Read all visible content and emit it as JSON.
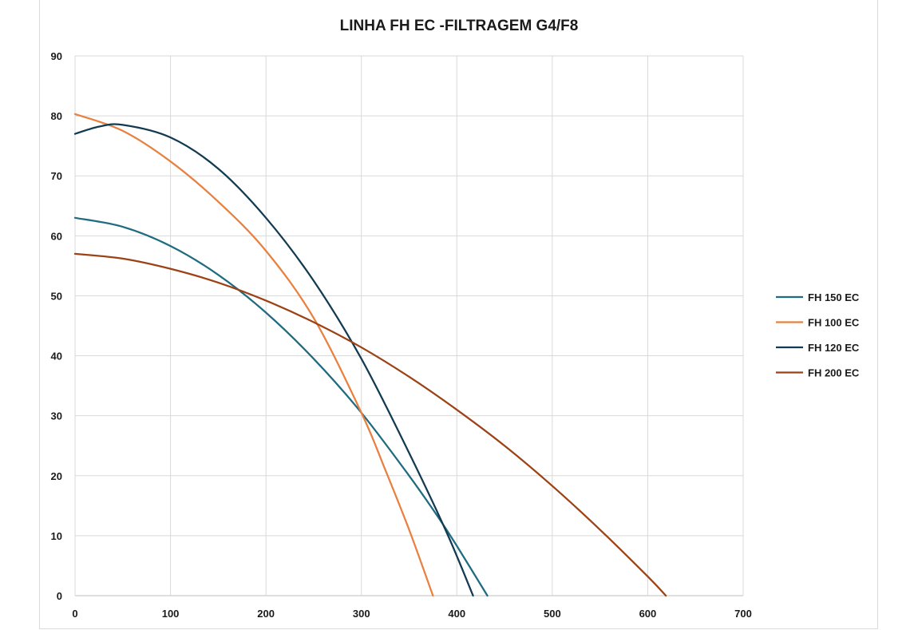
{
  "chart_data": {
    "type": "line",
    "title": "LINHA FH EC  -FILTRAGEM G4/F8",
    "xlabel": "",
    "ylabel": "",
    "xlim": [
      0,
      700
    ],
    "ylim": [
      0,
      90
    ],
    "x_ticks": [
      0,
      100,
      200,
      300,
      400,
      500,
      600,
      700
    ],
    "y_ticks": [
      0,
      10,
      20,
      30,
      40,
      50,
      60,
      70,
      80,
      90
    ],
    "grid": true,
    "legend_position": "right",
    "series": [
      {
        "name": "FH 150 EC",
        "color": "#1f6b80",
        "points": [
          [
            0,
            63
          ],
          [
            50,
            61.5
          ],
          [
            100,
            58.3
          ],
          [
            150,
            53.5
          ],
          [
            200,
            47.2
          ],
          [
            250,
            39.5
          ],
          [
            300,
            30.5
          ],
          [
            350,
            20
          ],
          [
            380,
            13.2
          ],
          [
            400,
            8.3
          ],
          [
            432,
            0
          ]
        ]
      },
      {
        "name": "FH 100 EC",
        "color": "#e8803f",
        "points": [
          [
            0,
            80.3
          ],
          [
            50,
            77.5
          ],
          [
            100,
            72.4
          ],
          [
            150,
            65.7
          ],
          [
            200,
            57.5
          ],
          [
            250,
            46.3
          ],
          [
            300,
            30.5
          ],
          [
            325,
            21
          ],
          [
            350,
            11
          ],
          [
            375,
            0
          ]
        ]
      },
      {
        "name": "FH 120 EC",
        "color": "#123b52",
        "points": [
          [
            0,
            77
          ],
          [
            25,
            78.2
          ],
          [
            50,
            78.5
          ],
          [
            100,
            76.4
          ],
          [
            150,
            71.2
          ],
          [
            200,
            63
          ],
          [
            250,
            52.5
          ],
          [
            300,
            39.5
          ],
          [
            350,
            23.8
          ],
          [
            390,
            10.3
          ],
          [
            417,
            0
          ]
        ]
      },
      {
        "name": "FH 200 EC",
        "color": "#9c4214",
        "points": [
          [
            0,
            57
          ],
          [
            50,
            56.2
          ],
          [
            100,
            54.5
          ],
          [
            150,
            52.2
          ],
          [
            200,
            49.2
          ],
          [
            250,
            45.6
          ],
          [
            300,
            41.4
          ],
          [
            350,
            36.5
          ],
          [
            400,
            31
          ],
          [
            450,
            25
          ],
          [
            500,
            18.3
          ],
          [
            550,
            11
          ],
          [
            600,
            3.2
          ],
          [
            619,
            0
          ]
        ]
      }
    ]
  }
}
